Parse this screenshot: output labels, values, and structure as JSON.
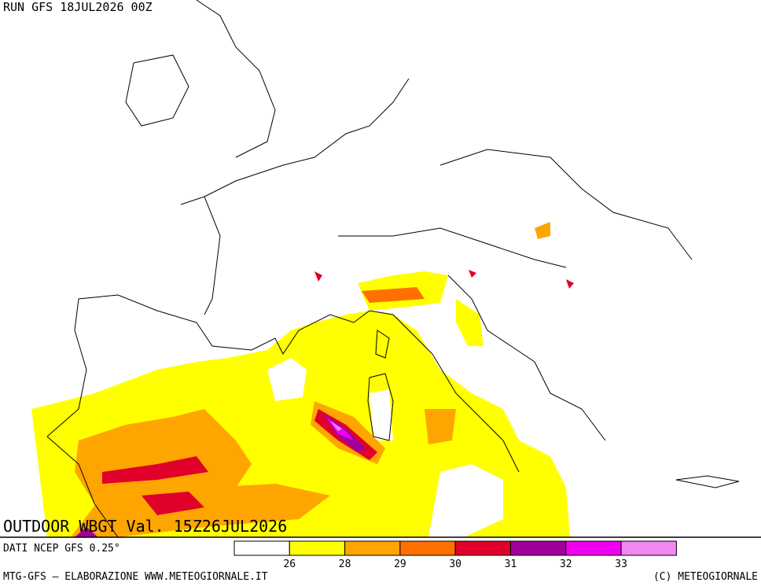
{
  "header": {
    "run": "RUN GFS 18JUL2026 00Z"
  },
  "map": {
    "title": "OUTDOOR WBGT Val. 15Z26JUL2026"
  },
  "legend": {
    "colors": [
      "#ffffff",
      "#ffff00",
      "#ffa500",
      "#ff7000",
      "#e0002a",
      "#a0009a",
      "#f000f0",
      "#f088f0"
    ],
    "thresholds": [
      26,
      28,
      29,
      30,
      31,
      32,
      33
    ]
  },
  "footer": {
    "source": "DATI NCEP GFS 0.25°",
    "credit": "MTG-GFS — ELABORAZIONE WWW.METEOGIORNALE.IT",
    "copyright": "(C) METEOGIORNALE"
  }
}
